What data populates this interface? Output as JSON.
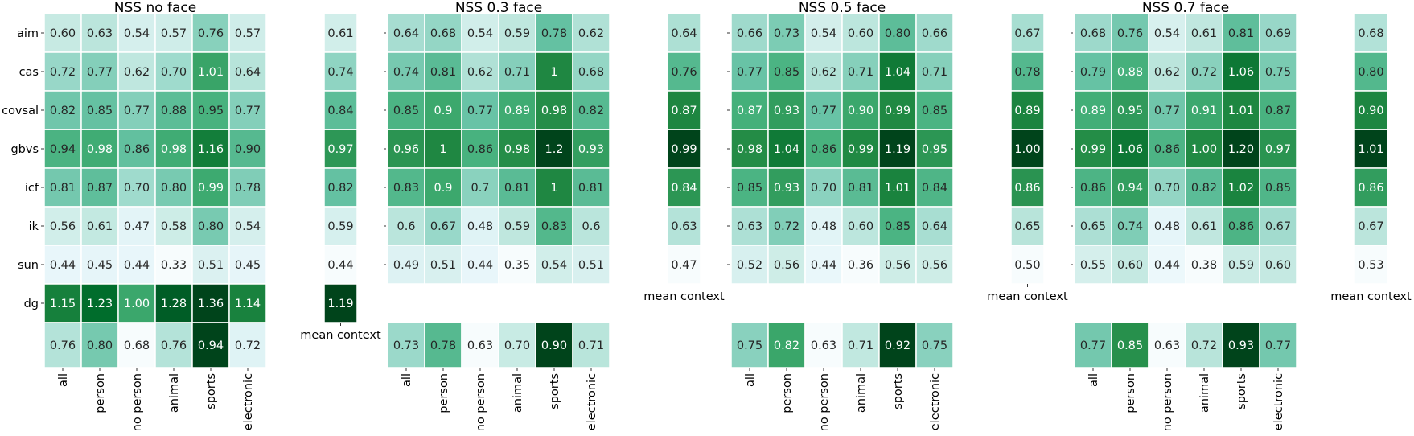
{
  "chart_data": {
    "type": "heatmap",
    "models": [
      "aim",
      "cas",
      "covsal",
      "gbvs",
      "icf",
      "ik",
      "sun",
      "dg"
    ],
    "categories": [
      "all",
      "person",
      "no person",
      "animal",
      "sports",
      "electronic"
    ],
    "mean_label": "mean context",
    "colormap": [
      "#f7fcfd",
      "#e5f5f9",
      "#ccece6",
      "#99d8c9",
      "#66c2a4",
      "#41ae76",
      "#238b45",
      "#006d2c",
      "#00441b"
    ],
    "panels": [
      {
        "title": "NSS no face",
        "show_row_labels": true,
        "matrix": [
          [
            "0.60",
            "0.63",
            "0.54",
            "0.57",
            "0.76",
            "0.57"
          ],
          [
            "0.72",
            "0.77",
            "0.62",
            "0.70",
            "1.01",
            "0.64"
          ],
          [
            "0.82",
            "0.85",
            "0.77",
            "0.88",
            "0.95",
            "0.77"
          ],
          [
            "0.94",
            "0.98",
            "0.86",
            "0.98",
            "1.16",
            "0.90"
          ],
          [
            "0.81",
            "0.87",
            "0.70",
            "0.80",
            "0.99",
            "0.78"
          ],
          [
            "0.56",
            "0.61",
            "0.47",
            "0.58",
            "0.80",
            "0.54"
          ],
          [
            "0.44",
            "0.45",
            "0.44",
            "0.33",
            "0.51",
            "0.45"
          ],
          [
            "1.15",
            "1.23",
            "1.00",
            "1.28",
            "1.36",
            "1.14"
          ]
        ],
        "mean_context": [
          "0.61",
          "0.74",
          "0.84",
          "0.97",
          "0.82",
          "0.59",
          "0.44",
          "1.19"
        ],
        "category_means": [
          "0.76",
          "0.80",
          "0.68",
          "0.76",
          "0.94",
          "0.72"
        ]
      },
      {
        "title": "NSS 0.3 face",
        "show_row_labels": false,
        "matrix": [
          [
            "0.64",
            "0.68",
            "0.54",
            "0.59",
            "0.78",
            "0.62"
          ],
          [
            "0.74",
            "0.81",
            "0.62",
            "0.71",
            "1",
            "0.68"
          ],
          [
            "0.85",
            "0.9",
            "0.77",
            "0.89",
            "0.98",
            "0.82"
          ],
          [
            "0.96",
            "1",
            "0.86",
            "0.98",
            "1.2",
            "0.93"
          ],
          [
            "0.83",
            "0.9",
            "0.7",
            "0.81",
            "1",
            "0.81"
          ],
          [
            "0.6",
            "0.67",
            "0.48",
            "0.59",
            "0.83",
            "0.6"
          ],
          [
            "0.49",
            "0.51",
            "0.44",
            "0.35",
            "0.54",
            "0.51"
          ]
        ],
        "mean_context": [
          "0.64",
          "0.76",
          "0.87",
          "0.99",
          "0.84",
          "0.63",
          "0.47"
        ],
        "category_means": [
          "0.73",
          "0.78",
          "0.63",
          "0.70",
          "0.90",
          "0.71"
        ]
      },
      {
        "title": "NSS 0.5 face",
        "show_row_labels": false,
        "matrix": [
          [
            "0.66",
            "0.73",
            "0.54",
            "0.60",
            "0.80",
            "0.66"
          ],
          [
            "0.77",
            "0.85",
            "0.62",
            "0.71",
            "1.04",
            "0.71"
          ],
          [
            "0.87",
            "0.93",
            "0.77",
            "0.90",
            "0.99",
            "0.85"
          ],
          [
            "0.98",
            "1.04",
            "0.86",
            "0.99",
            "1.19",
            "0.95"
          ],
          [
            "0.85",
            "0.93",
            "0.70",
            "0.81",
            "1.01",
            "0.84"
          ],
          [
            "0.63",
            "0.72",
            "0.48",
            "0.60",
            "0.85",
            "0.64"
          ],
          [
            "0.52",
            "0.56",
            "0.44",
            "0.36",
            "0.56",
            "0.56"
          ]
        ],
        "mean_context": [
          "0.67",
          "0.78",
          "0.89",
          "1.00",
          "0.86",
          "0.65",
          "0.50"
        ],
        "category_means": [
          "0.75",
          "0.82",
          "0.63",
          "0.71",
          "0.92",
          "0.75"
        ]
      },
      {
        "title": "NSS 0.7 face",
        "show_row_labels": false,
        "matrix": [
          [
            "0.68",
            "0.76",
            "0.54",
            "0.61",
            "0.81",
            "0.69"
          ],
          [
            "0.79",
            "0.88",
            "0.62",
            "0.72",
            "1.06",
            "0.75"
          ],
          [
            "0.89",
            "0.95",
            "0.77",
            "0.91",
            "1.01",
            "0.87"
          ],
          [
            "0.99",
            "1.06",
            "0.86",
            "1.00",
            "1.20",
            "0.97"
          ],
          [
            "0.86",
            "0.94",
            "0.70",
            "0.82",
            "1.02",
            "0.85"
          ],
          [
            "0.65",
            "0.74",
            "0.48",
            "0.61",
            "0.86",
            "0.67"
          ],
          [
            "0.55",
            "0.60",
            "0.44",
            "0.38",
            "0.59",
            "0.60"
          ]
        ],
        "mean_context": [
          "0.68",
          "0.80",
          "0.90",
          "1.01",
          "0.86",
          "0.67",
          "0.53"
        ],
        "category_means": [
          "0.77",
          "0.85",
          "0.63",
          "0.72",
          "0.93",
          "0.77"
        ]
      }
    ]
  }
}
